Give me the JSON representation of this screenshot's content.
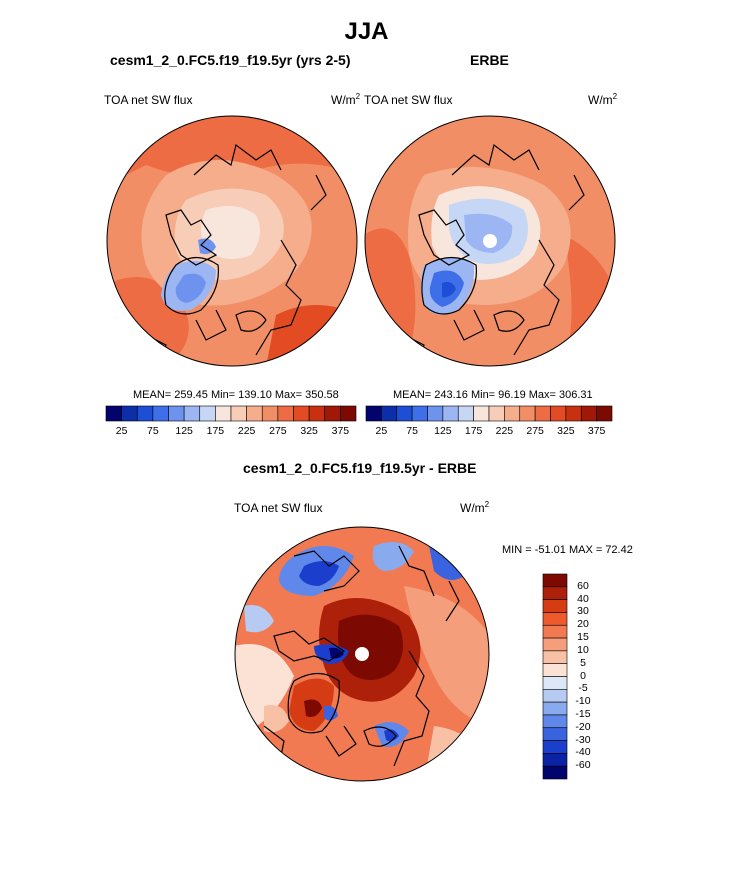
{
  "page": {
    "title": "JJA"
  },
  "panels": {
    "model": {
      "title": "cesm1_2_0.FC5.f19_f19.5yr (yrs 2-5)",
      "left_label": "TOA net SW flux",
      "unit_base": "W/m",
      "unit_exp": "2",
      "stats": "MEAN= 259.45  Min= 139.10  Max= 350.58"
    },
    "obs": {
      "title": "ERBE",
      "left_label": "TOA net SW flux",
      "unit_base": "W/m",
      "unit_exp": "2",
      "stats": "MEAN= 243.16  Min=  96.19  Max= 306.31"
    },
    "diff": {
      "title": "cesm1_2_0.FC5.f19_f19.5yr - ERBE",
      "left_label": "TOA net SW flux",
      "unit_base": "W/m",
      "unit_exp": "2",
      "stats": "MIN = -51.01 MAX =  72.42"
    }
  },
  "colorbars": {
    "absolute": {
      "colors": [
        "#03036e",
        "#0c2ea8",
        "#1d4fd6",
        "#3f6fe8",
        "#6d93ee",
        "#9bb6f2",
        "#c6d6f5",
        "#f8e6dd",
        "#f7cdb8",
        "#f5ad8c",
        "#f28e66",
        "#ee6c43",
        "#e34b22",
        "#c8300f",
        "#a01806",
        "#7c0a02"
      ],
      "labels": [
        "25",
        "75",
        "125",
        "175",
        "225",
        "275",
        "325",
        "375"
      ]
    },
    "difference": {
      "colors": [
        "#7c0a02",
        "#ad200a",
        "#d63c14",
        "#ee5a2c",
        "#f27a52",
        "#f59e7c",
        "#f8c1a6",
        "#fbe2d5",
        "#dde8f7",
        "#b7cbf2",
        "#8aaaee",
        "#6088ea",
        "#3a63e0",
        "#1b3fcc",
        "#0a22a3",
        "#03036e"
      ],
      "labels": [
        "60",
        "40",
        "30",
        "20",
        "15",
        "10",
        "5",
        "0",
        "-5",
        "-10",
        "-15",
        "-20",
        "-30",
        "-40",
        "-60"
      ]
    }
  },
  "colors": {
    "background": "#ffffff",
    "coast": "#000000",
    "warm_mid": "#f28e66",
    "cool_mid": "#6d93ee"
  }
}
